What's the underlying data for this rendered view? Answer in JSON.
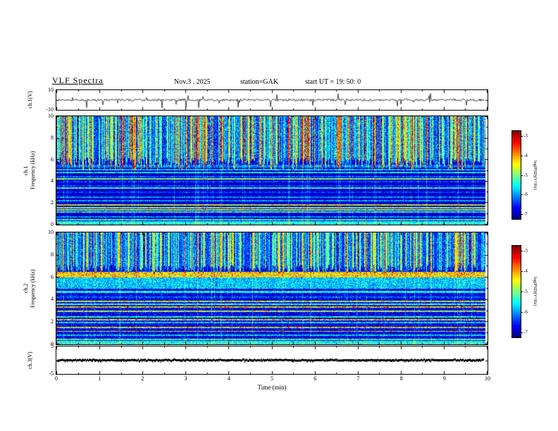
{
  "header": {
    "title": "VLF Spectra",
    "date_label": "Nov.3  . 2025",
    "station_label": "station=GAK",
    "start_label": "start UT =   19: 50: 0"
  },
  "x_axis": {
    "label": "Time (min)",
    "ticks": [
      "0",
      "1",
      "2",
      "3",
      "4",
      "5",
      "6",
      "7",
      "8",
      "9",
      "10"
    ],
    "range": [
      0,
      10
    ]
  },
  "panels": [
    {
      "id": "ch1-waveform",
      "ylabel": "ch.1(V)",
      "ytick_labels": [
        "10",
        "-10"
      ],
      "ylim": [
        -10,
        10
      ],
      "type": "line"
    },
    {
      "id": "ch1-spectrogram",
      "ylabel": "ch.1\nFrequency (kHz)",
      "ytick_labels": [
        "10",
        "8",
        "6",
        "4",
        "2",
        "0"
      ],
      "ylim": [
        0,
        10
      ],
      "type": "heatmap"
    },
    {
      "id": "ch2-spectrogram",
      "ylabel": "ch.2\nFrequency (kHz)",
      "ytick_labels": [
        "10",
        "8",
        "6",
        "4",
        "2",
        "0"
      ],
      "ylim": [
        0,
        10
      ],
      "type": "heatmap"
    },
    {
      "id": "ch3-waveform",
      "ylabel": "ch.3(V)",
      "ytick_labels": [
        "5",
        "-5"
      ],
      "ylim": [
        -5,
        5
      ],
      "type": "line"
    }
  ],
  "colorbars": [
    {
      "label": "log(PSD)(V²/Hz)",
      "ticks": [
        "-3",
        "-4",
        "-5",
        "-6",
        "-7"
      ],
      "range": [
        -7,
        -3
      ]
    },
    {
      "label": "log(PSD)(V²/Hz)",
      "ticks": [
        "-3",
        "-4",
        "-5",
        "-6",
        "-7"
      ],
      "range": [
        -7,
        -3
      ]
    }
  ],
  "chart_data": [
    {
      "type": "line",
      "panel": "ch.1(V)",
      "xlabel": "Time (min)",
      "xlim": [
        0,
        10
      ],
      "ylabel": "ch.1(V)",
      "ylim": [
        -10,
        10
      ],
      "description": "Continuous broadband VLF voltage waveform fluctuating around 0 V with dense low-amplitude noise and frequent impulsive spikes (sferics) extending toward +10 and -10 V, spanning 0 to ~9.8 min"
    },
    {
      "type": "heatmap",
      "panel": "ch.1 spectrogram",
      "xlabel": "Time (min)",
      "xlim": [
        0,
        10
      ],
      "ylabel": "Frequency (kHz)",
      "ylim": [
        0,
        10
      ],
      "zlabel": "log(PSD)(V²/Hz)",
      "zlim": [
        -7,
        -3
      ],
      "colormap": "jet",
      "features": [
        "dense vertical sferic streaks (green/yellow, PSD about -4.5 to -3.5) above ~5.5 kHz",
        "occasional red impulses reaching PSD about -3",
        "many narrow horizontal interference lines (blue/cyan) between 0.5 and 5.5 kHz",
        "dark background (PSD about -7) below 5 kHz",
        "bright emission line near 0.3 kHz"
      ]
    },
    {
      "type": "heatmap",
      "panel": "ch.2 spectrogram",
      "xlabel": "Time (min)",
      "xlim": [
        0,
        10
      ],
      "ylabel": "Frequency (kHz)",
      "ylim": [
        0,
        10
      ],
      "zlabel": "log(PSD)(V²/Hz)",
      "zlim": [
        -7,
        -3
      ],
      "colormap": "jet",
      "features": [
        "strong continuous yellow/orange band near 6.0-6.5 kHz (PSD about -4)",
        "green band between 5 and 6 kHz",
        "cyan interference line near 4.7 kHz",
        "vertical sferic streaks (green/yellow) above ~6.5 kHz with occasional red impulses",
        "horizontal interference lines and blue/cyan speckle below 4.5 kHz",
        "bright line near 0.3 kHz"
      ]
    },
    {
      "type": "line",
      "panel": "ch.3(V)",
      "xlabel": "Time (min)",
      "xlim": [
        0,
        10
      ],
      "ylabel": "ch.3(V)",
      "ylim": [
        -5,
        5
      ],
      "description": "Flat saturated trace pinned at 0 V forming a thick black band from 0 to ~9.8 min"
    }
  ]
}
